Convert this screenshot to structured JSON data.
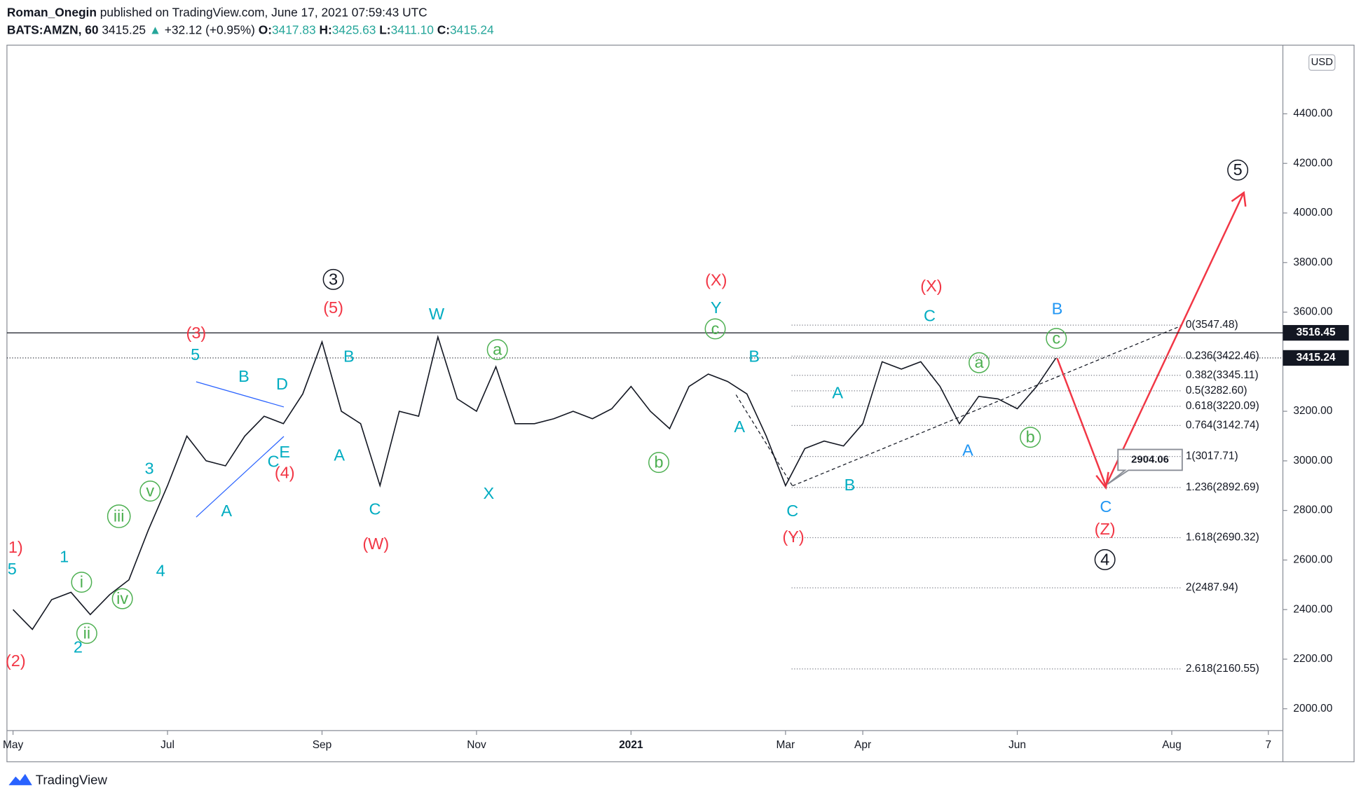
{
  "chart_data": {
    "type": "line",
    "header": {
      "author": "Roman_Onegin",
      "published": "published on TradingView.com, June 17, 2021 07:59:43 UTC",
      "symbol": "BATS:AMZN, 60",
      "last": "3415.25",
      "arrow": "▲",
      "change": "+32.12 (+0.95%)",
      "ohlc": [
        {
          "label": "O:",
          "value": "3417.83"
        },
        {
          "label": "H:",
          "value": "3425.63"
        },
        {
          "label": "L:",
          "value": "3411.10"
        },
        {
          "label": "C:",
          "value": "3415.24"
        }
      ]
    },
    "currency": "USD",
    "brand": "TradingView",
    "categories": [
      "May",
      null,
      null,
      null,
      null,
      null,
      null,
      null,
      "Jul",
      null,
      null,
      null,
      null,
      null,
      null,
      null,
      "Sep",
      null,
      null,
      null,
      null,
      null,
      null,
      null,
      "Nov",
      null,
      null,
      null,
      null,
      null,
      null,
      null,
      "2021",
      null,
      null,
      null,
      null,
      null,
      null,
      null,
      "Mar",
      null,
      null,
      null,
      "Apr",
      null,
      null,
      null,
      null,
      null,
      null,
      null,
      "Jun",
      null,
      null,
      null,
      null,
      null,
      null,
      null,
      "Aug",
      null,
      null,
      null,
      null,
      "7"
    ],
    "values": [
      2400,
      2320,
      2440,
      2470,
      2380,
      2460,
      2520,
      2720,
      2900,
      3100,
      3000,
      2980,
      3100,
      3180,
      3150,
      3270,
      3480,
      3200,
      3150,
      2900,
      3200,
      3180,
      3500,
      3250,
      3200,
      3380,
      3150,
      3150,
      3170,
      3200,
      3170,
      3210,
      3300,
      3200,
      3130,
      3300,
      3350,
      3320,
      3270,
      3100,
      2900,
      3050,
      3080,
      3060,
      3150,
      3400,
      3370,
      3400,
      3300,
      3150,
      3260,
      3250,
      3210,
      3300,
      3415,
      null,
      null,
      null,
      null,
      null,
      null,
      null,
      null,
      null,
      null,
      null
    ],
    "color": "#131722",
    "ylim": [
      1912,
      4677
    ],
    "yticks": [
      {
        "value": 2000,
        "label": "2000.00"
      },
      {
        "value": 2200,
        "label": "2200.00"
      },
      {
        "value": 2400,
        "label": "2400.00"
      },
      {
        "value": 2600,
        "label": "2600.00"
      },
      {
        "value": 2800,
        "label": "2800.00"
      },
      {
        "value": 3000,
        "label": "3000.00"
      },
      {
        "value": 3200,
        "label": "3200.00"
      },
      {
        "value": 3400,
        "label": "3400.00"
      },
      {
        "value": 3600,
        "label": "3600.00"
      },
      {
        "value": 3800,
        "label": "3800.00"
      },
      {
        "value": 4000,
        "label": "4000.00"
      },
      {
        "value": 4200,
        "label": "4200.00"
      },
      {
        "value": 4400,
        "label": "4400.00"
      }
    ],
    "price_lines": [
      3516.45,
      3415.24
    ],
    "target": 2904.06,
    "fib_levels": [
      {
        "value": 3547.48,
        "label": "0(3547.48)"
      },
      {
        "value": 3422.46,
        "label": "0.236(3422.46)"
      },
      {
        "value": 3345.11,
        "label": "0.382(3345.11)"
      },
      {
        "value": 3282.6,
        "label": "0.5(3282.60)"
      },
      {
        "value": 3220.09,
        "label": "0.618(3220.09)"
      },
      {
        "value": 3142.74,
        "label": "0.764(3142.74)"
      },
      {
        "value": 3017.71,
        "label": "1(3017.71)"
      },
      {
        "value": 2892.69,
        "label": "1.236(2892.69)"
      },
      {
        "value": 2690.32,
        "label": "1.618(2690.32)"
      },
      {
        "value": 2487.94,
        "label": "2(2487.94)"
      },
      {
        "value": 2160.55,
        "label": "2.618(2160.55)"
      }
    ],
    "annotations": [
      {
        "text": "(3)",
        "color": "#f23645"
      },
      {
        "text": "(5)",
        "color": "#f23645"
      },
      {
        "text": "(4)",
        "color": "#f23645"
      },
      {
        "text": "(W)",
        "color": "#f23645"
      },
      {
        "text": "(X)",
        "color": "#f23645"
      },
      {
        "text": "(Y)",
        "color": "#f23645"
      },
      {
        "text": "(X)",
        "color": "#f23645"
      },
      {
        "text": "(Z)",
        "color": "#f23645"
      },
      {
        "text": "1)",
        "color": "#f23645"
      },
      {
        "text": "(2)",
        "color": "#f23645"
      },
      {
        "text": "5",
        "color": "#00acc1"
      },
      {
        "text": "B",
        "color": "#00acc1"
      },
      {
        "text": "D",
        "color": "#00acc1"
      },
      {
        "text": "E",
        "color": "#00acc1"
      },
      {
        "text": "C",
        "color": "#00acc1"
      },
      {
        "text": "A",
        "color": "#00acc1"
      },
      {
        "text": "B",
        "color": "#00acc1"
      },
      {
        "text": "A",
        "color": "#00acc1"
      },
      {
        "text": "C",
        "color": "#00acc1"
      },
      {
        "text": "W",
        "color": "#00acc1"
      },
      {
        "text": "X",
        "color": "#00acc1"
      },
      {
        "text": "Y",
        "color": "#00acc1"
      },
      {
        "text": "B",
        "color": "#00acc1"
      },
      {
        "text": "A",
        "color": "#00acc1"
      },
      {
        "text": "C",
        "color": "#00acc1"
      },
      {
        "text": "B",
        "color": "#00acc1"
      },
      {
        "text": "A",
        "color": "#00acc1"
      },
      {
        "text": "C",
        "color": "#00acc1"
      },
      {
        "text": "3",
        "color": "#00acc1"
      },
      {
        "text": "4",
        "color": "#00acc1"
      },
      {
        "text": "1",
        "color": "#00acc1"
      },
      {
        "text": "2",
        "color": "#00acc1"
      },
      {
        "text": "5",
        "color": "#00acc1"
      },
      {
        "text": "A",
        "color": "#2196f3"
      },
      {
        "text": "B",
        "color": "#2196f3"
      },
      {
        "text": "C",
        "color": "#2196f3"
      },
      {
        "text": "a",
        "color": "#4caf50",
        "circled": true
      },
      {
        "text": "b",
        "color": "#4caf50",
        "circled": true
      },
      {
        "text": "c",
        "color": "#4caf50",
        "circled": true
      },
      {
        "text": "a",
        "color": "#4caf50",
        "circled": true
      },
      {
        "text": "b",
        "color": "#4caf50",
        "circled": true
      },
      {
        "text": "c",
        "color": "#4caf50",
        "circled": true
      },
      {
        "text": "i",
        "color": "#4caf50",
        "circled": true
      },
      {
        "text": "ii",
        "color": "#4caf50",
        "circled": true
      },
      {
        "text": "iii",
        "color": "#4caf50",
        "circled": true
      },
      {
        "text": "iv",
        "color": "#4caf50",
        "circled": true
      },
      {
        "text": "v",
        "color": "#4caf50",
        "circled": true
      },
      {
        "text": "3",
        "color": "#131722",
        "circled": true
      },
      {
        "text": "4",
        "color": "#131722",
        "circled": true
      },
      {
        "text": "5",
        "color": "#131722",
        "circled": true
      }
    ]
  }
}
